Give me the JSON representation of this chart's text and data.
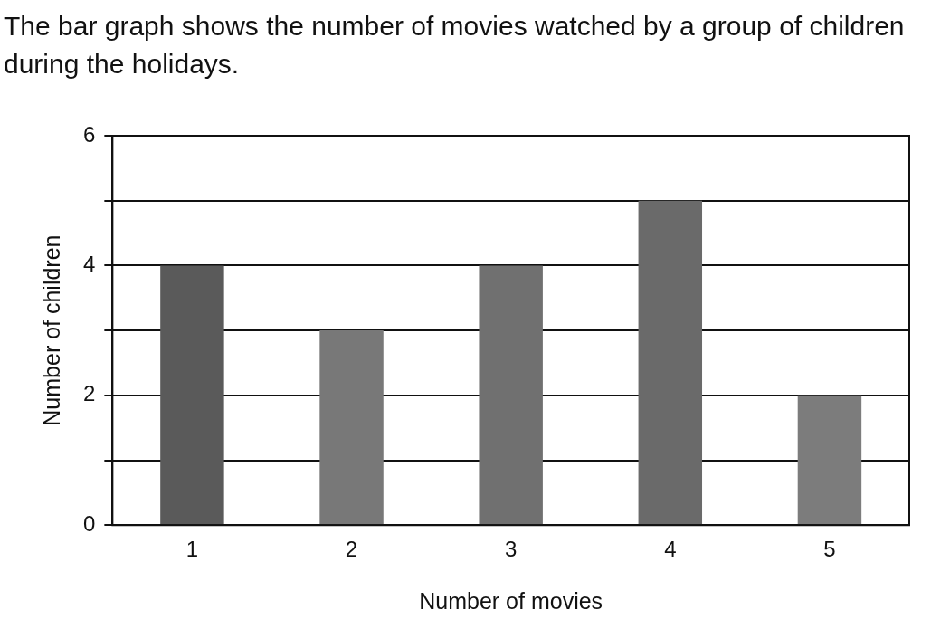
{
  "chart_data": {
    "type": "bar",
    "title": "The bar graph shows the number of movies watched by a group of children during the holidays.",
    "xlabel": "Number of movies",
    "ylabel": "Number of children",
    "categories": [
      "1",
      "2",
      "3",
      "4",
      "5"
    ],
    "values": [
      4,
      3,
      4,
      5,
      2
    ],
    "colors": [
      "#5a5a5a",
      "#787878",
      "#707070",
      "#6a6a6a",
      "#7c7c7c"
    ],
    "ylim": [
      0,
      6
    ],
    "yticks": [
      0,
      {
        "value": 1,
        "label": null
      },
      2,
      {
        "value": 3,
        "label": null
      },
      4,
      {
        "value": 5,
        "label": null
      },
      6
    ],
    "grid": "y"
  }
}
